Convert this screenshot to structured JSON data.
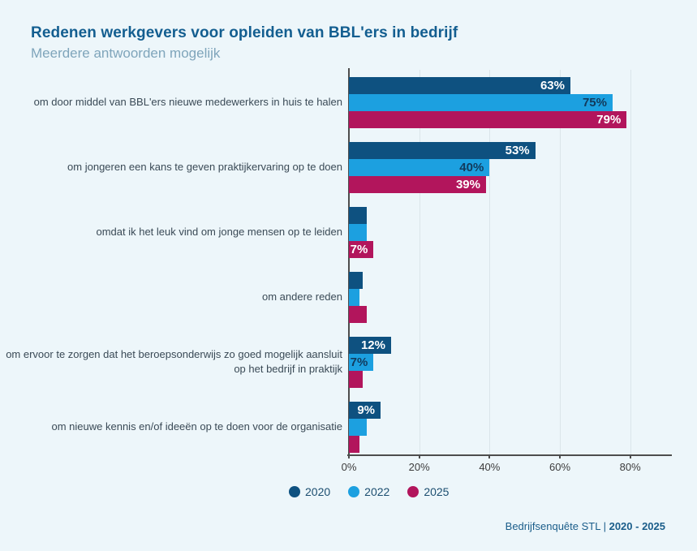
{
  "page": {
    "background": "#edf6fa"
  },
  "header": {
    "title": "Redenen werkgevers voor opleiden van BBL'ers in bedrijf",
    "subtitle": "Meerdere antwoorden mogelijk"
  },
  "chart_data": {
    "type": "bar",
    "orientation": "horizontal",
    "title": "Redenen werkgevers voor opleiden van BBL'ers in bedrijf",
    "subtitle": "Meerdere antwoorden mogelijk",
    "xlim": [
      0,
      90
    ],
    "x_tick_values": [
      0,
      20,
      40,
      60,
      80
    ],
    "x_tick_labels": [
      "0%",
      "20%",
      "40%",
      "60%",
      "80%"
    ],
    "grid": true,
    "legend_position": "bottom-left",
    "series": [
      {
        "name": "2020",
        "color": "#0e5180",
        "value_label_color": "#ffffff"
      },
      {
        "name": "2022",
        "color": "#1ca0e0",
        "value_label_color": "#123a5c"
      },
      {
        "name": "2025",
        "color": "#b2155c",
        "value_label_color": "#ffffff"
      }
    ],
    "groups": [
      {
        "category": "om door middel van BBL'ers nieuwe medewerkers in huis te halen",
        "values": [
          63,
          75,
          79
        ],
        "value_labels": [
          "63%",
          "75%",
          "79%"
        ]
      },
      {
        "category": "om jongeren een kans te geven praktijkervaring op te doen",
        "values": [
          53,
          40,
          39
        ],
        "value_labels": [
          "53%",
          "40%",
          "39%"
        ]
      },
      {
        "category": "omdat ik het leuk vind om jonge mensen op te leiden",
        "values": [
          5,
          5,
          7
        ],
        "value_labels": [
          "",
          "",
          "7%"
        ]
      },
      {
        "category": "om andere reden",
        "values": [
          4,
          3,
          5
        ],
        "value_labels": [
          "",
          "",
          ""
        ]
      },
      {
        "category": "om ervoor te zorgen dat het beroepsonderwijs zo goed mogelijk aansluit op het bedrijf in praktijk",
        "values": [
          12,
          7,
          4
        ],
        "value_labels": [
          "12%",
          "7%",
          ""
        ]
      },
      {
        "category": "om nieuwe kennis en/of ideeën op te doen voor de organisatie",
        "values": [
          9,
          5,
          3
        ],
        "value_labels": [
          "9%",
          "",
          ""
        ]
      }
    ]
  },
  "footer": {
    "source": "Bedrijfsenquête STL |",
    "range": "2020 - 2025"
  }
}
